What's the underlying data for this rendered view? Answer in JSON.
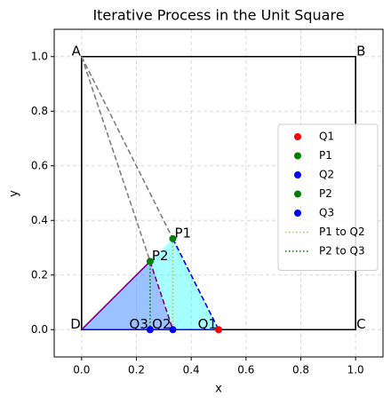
{
  "chart_data": {
    "type": "scatter",
    "title": "Iterative Process in the Unit Square",
    "xlabel": "x",
    "ylabel": "y",
    "xlim": [
      -0.1,
      1.1
    ],
    "ylim": [
      -0.1,
      1.1
    ],
    "xticks": [
      {
        "value": 0,
        "label": "0.0"
      },
      {
        "value": 0.2,
        "label": "0.2"
      },
      {
        "value": 0.4,
        "label": "0.4"
      },
      {
        "value": 0.6,
        "label": "0.6"
      },
      {
        "value": 0.8,
        "label": "0.8"
      },
      {
        "value": 1,
        "label": "1.0"
      }
    ],
    "yticks": [
      {
        "value": 0,
        "label": "0.0"
      },
      {
        "value": 0.2,
        "label": "0.2"
      },
      {
        "value": 0.4,
        "label": "0.4"
      },
      {
        "value": 0.6,
        "label": "0.6"
      },
      {
        "value": 0.8,
        "label": "0.8"
      },
      {
        "value": 1,
        "label": "1.0"
      }
    ],
    "grid": true,
    "legend": "right",
    "corners": [
      {
        "label": "A",
        "x": 0,
        "y": 1
      },
      {
        "label": "B",
        "x": 1,
        "y": 1
      },
      {
        "label": "C",
        "x": 1,
        "y": 0
      },
      {
        "label": "D",
        "x": 0,
        "y": 0
      }
    ],
    "polygons": [
      {
        "color": "#00ffff",
        "x": [
          0,
          0.333,
          0.5
        ],
        "y": [
          0,
          0.333,
          0
        ]
      },
      {
        "color": "#8a4dff",
        "x": [
          0,
          0.25,
          0.333
        ],
        "y": [
          0,
          0.25,
          0
        ]
      }
    ],
    "points": [
      {
        "name": "Q1",
        "color": "#ff0000",
        "x": [
          0.5
        ],
        "y": [
          0
        ]
      },
      {
        "name": "P1",
        "color": "#008000",
        "x": [
          0.333
        ],
        "y": [
          0.333
        ]
      },
      {
        "name": "Q2",
        "color": "#0000ff",
        "x": [
          0.333
        ],
        "y": [
          0
        ]
      },
      {
        "name": "P2",
        "color": "#008000",
        "x": [
          0.25
        ],
        "y": [
          0.25
        ]
      },
      {
        "name": "Q3",
        "color": "#0000ff",
        "x": [
          0.25
        ],
        "y": [
          0
        ]
      }
    ],
    "lines": [
      {
        "color": "#808080",
        "style": "dashed",
        "x": [
          0,
          0.333
        ],
        "y": [
          1,
          0.333
        ]
      },
      {
        "color": "#808080",
        "style": "dashed",
        "x": [
          0,
          0.25
        ],
        "y": [
          1,
          0.25
        ]
      },
      {
        "color": "#0000ff",
        "style": "dashed",
        "x": [
          0.333,
          0.5
        ],
        "y": [
          0.333,
          0
        ]
      },
      {
        "color": "#0000ff",
        "style": "solid",
        "x": [
          0,
          0.5
        ],
        "y": [
          0,
          0
        ]
      },
      {
        "color": "#800080",
        "style": "solid",
        "x": [
          0,
          0.25
        ],
        "y": [
          0,
          0.25
        ]
      },
      {
        "color": "#800080",
        "style": "dashed",
        "x": [
          0.25,
          0.333
        ],
        "y": [
          0.25,
          0
        ]
      },
      {
        "name": "P1 to Q2",
        "color": "#ffa500",
        "style": "dotted",
        "x": [
          0.333,
          0.333
        ],
        "y": [
          0.333,
          0
        ]
      },
      {
        "name": "P2 to Q3",
        "color": "#008000",
        "style": "dotted",
        "x": [
          0.25,
          0.25
        ],
        "y": [
          0.25,
          0
        ]
      }
    ]
  }
}
